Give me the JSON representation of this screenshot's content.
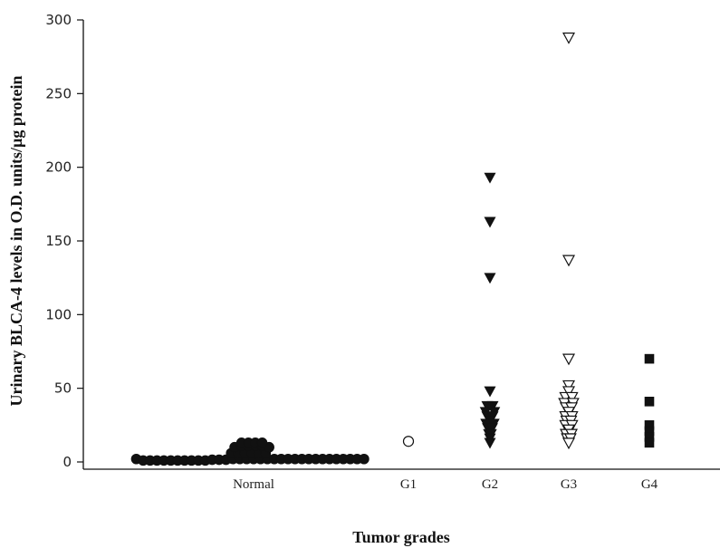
{
  "chart_data": {
    "type": "scatter",
    "xlabel": "Tumor grades",
    "ylabel": "Urinary BLCA-4 levels in O.D. units/µg protein",
    "ylim": [
      0,
      300
    ],
    "yticks": [
      0,
      50,
      100,
      150,
      200,
      250,
      300
    ],
    "categories": [
      "Normal",
      "G1",
      "G2",
      "G3",
      "G4"
    ],
    "grid": false,
    "series": [
      {
        "category": "Normal",
        "marker": "filled-circle",
        "points": [
          {
            "x": -0.68,
            "y": 2
          },
          {
            "x": -0.64,
            "y": 1
          },
          {
            "x": -0.6,
            "y": 1
          },
          {
            "x": -0.56,
            "y": 1
          },
          {
            "x": -0.52,
            "y": 1
          },
          {
            "x": -0.48,
            "y": 1
          },
          {
            "x": -0.44,
            "y": 1
          },
          {
            "x": -0.4,
            "y": 1
          },
          {
            "x": -0.36,
            "y": 1
          },
          {
            "x": -0.32,
            "y": 1
          },
          {
            "x": -0.28,
            "y": 1
          },
          {
            "x": -0.24,
            "y": 1.5
          },
          {
            "x": -0.2,
            "y": 1.5
          },
          {
            "x": -0.16,
            "y": 1.5
          },
          {
            "x": -0.12,
            "y": 2
          },
          {
            "x": -0.08,
            "y": 2
          },
          {
            "x": -0.04,
            "y": 2
          },
          {
            "x": 0.0,
            "y": 2
          },
          {
            "x": 0.04,
            "y": 2
          },
          {
            "x": 0.08,
            "y": 2
          },
          {
            "x": 0.12,
            "y": 2
          },
          {
            "x": 0.16,
            "y": 2
          },
          {
            "x": 0.2,
            "y": 2
          },
          {
            "x": 0.24,
            "y": 2
          },
          {
            "x": 0.28,
            "y": 2
          },
          {
            "x": 0.32,
            "y": 2
          },
          {
            "x": 0.36,
            "y": 2
          },
          {
            "x": 0.4,
            "y": 2
          },
          {
            "x": 0.44,
            "y": 2
          },
          {
            "x": 0.48,
            "y": 2
          },
          {
            "x": 0.52,
            "y": 2
          },
          {
            "x": 0.56,
            "y": 2
          },
          {
            "x": 0.6,
            "y": 2
          },
          {
            "x": 0.64,
            "y": 2
          },
          {
            "x": -0.13,
            "y": 6
          },
          {
            "x": -0.09,
            "y": 6
          },
          {
            "x": -0.05,
            "y": 6
          },
          {
            "x": -0.01,
            "y": 6
          },
          {
            "x": 0.03,
            "y": 6
          },
          {
            "x": 0.07,
            "y": 6
          },
          {
            "x": -0.11,
            "y": 10
          },
          {
            "x": -0.07,
            "y": 11
          },
          {
            "x": -0.03,
            "y": 11
          },
          {
            "x": 0.01,
            "y": 11
          },
          {
            "x": 0.05,
            "y": 11
          },
          {
            "x": 0.09,
            "y": 10
          },
          {
            "x": -0.07,
            "y": 13
          },
          {
            "x": -0.03,
            "y": 13
          },
          {
            "x": 0.01,
            "y": 13
          },
          {
            "x": 0.05,
            "y": 13
          }
        ]
      },
      {
        "category": "G1",
        "marker": "open-circle",
        "points": [
          {
            "x": 0,
            "y": 14
          }
        ]
      },
      {
        "category": "G2",
        "marker": "filled-triangle-down",
        "points": [
          {
            "x": 0,
            "y": 193
          },
          {
            "x": 0,
            "y": 163
          },
          {
            "x": 0,
            "y": 125
          },
          {
            "x": 0,
            "y": 48
          },
          {
            "x": -0.05,
            "y": 38
          },
          {
            "x": 0.05,
            "y": 38
          },
          {
            "x": -0.08,
            "y": 34
          },
          {
            "x": 0.08,
            "y": 34
          },
          {
            "x": -0.05,
            "y": 31
          },
          {
            "x": 0.05,
            "y": 31
          },
          {
            "x": 0,
            "y": 28
          },
          {
            "x": -0.07,
            "y": 26
          },
          {
            "x": 0.07,
            "y": 26
          },
          {
            "x": -0.04,
            "y": 23
          },
          {
            "x": 0.04,
            "y": 23
          },
          {
            "x": -0.02,
            "y": 19
          },
          {
            "x": 0.02,
            "y": 19
          },
          {
            "x": 0,
            "y": 16
          },
          {
            "x": 0,
            "y": 13
          }
        ]
      },
      {
        "category": "G3",
        "marker": "open-triangle-down",
        "points": [
          {
            "x": 0,
            "y": 288
          },
          {
            "x": 0,
            "y": 137
          },
          {
            "x": 0,
            "y": 70
          },
          {
            "x": 0,
            "y": 52
          },
          {
            "x": 0,
            "y": 48
          },
          {
            "x": -0.06,
            "y": 44
          },
          {
            "x": 0.06,
            "y": 44
          },
          {
            "x": -0.08,
            "y": 40
          },
          {
            "x": 0.08,
            "y": 40
          },
          {
            "x": -0.05,
            "y": 37
          },
          {
            "x": 0.05,
            "y": 37
          },
          {
            "x": 0,
            "y": 34
          },
          {
            "x": -0.06,
            "y": 31
          },
          {
            "x": 0.06,
            "y": 31
          },
          {
            "x": -0.04,
            "y": 28
          },
          {
            "x": 0.04,
            "y": 28
          },
          {
            "x": -0.06,
            "y": 25
          },
          {
            "x": 0.06,
            "y": 25
          },
          {
            "x": 0,
            "y": 22
          },
          {
            "x": -0.05,
            "y": 19
          },
          {
            "x": 0.05,
            "y": 19
          },
          {
            "x": -0.03,
            "y": 16
          },
          {
            "x": 0.03,
            "y": 16
          },
          {
            "x": 0,
            "y": 13
          }
        ]
      },
      {
        "category": "G4",
        "marker": "filled-square",
        "points": [
          {
            "x": 0,
            "y": 70
          },
          {
            "x": 0,
            "y": 41
          },
          {
            "x": 0,
            "y": 25
          },
          {
            "x": 0,
            "y": 21
          },
          {
            "x": 0,
            "y": 17
          },
          {
            "x": 0,
            "y": 13
          }
        ]
      }
    ]
  }
}
